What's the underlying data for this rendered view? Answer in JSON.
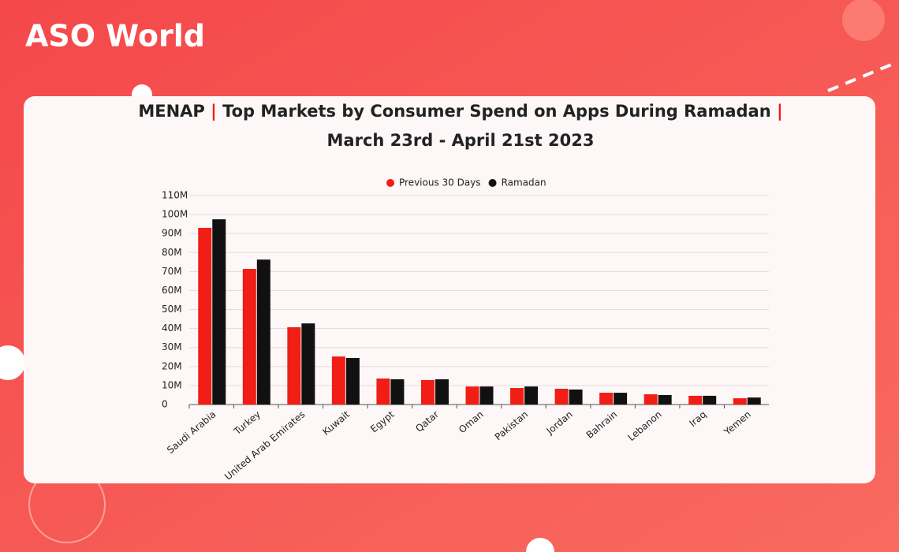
{
  "brand": "ASO World",
  "chart_data": {
    "type": "bar",
    "title": [
      "MENAP | Top Markets by Consumer Spend on Apps During Ramadan |",
      "March 23rd - April 21st 2023"
    ],
    "categories": [
      "Saudi Arabia",
      "Turkey",
      "United Arab Emirates",
      "Kuwait",
      "Egypt",
      "Qatar",
      "Oman",
      "Pakistan",
      "Jordan",
      "Bahrain",
      "Lebanon",
      "Iraq",
      "Yemen"
    ],
    "series": [
      {
        "name": "Previous 30 Days",
        "color": "#f01e14",
        "values": [
          93,
          71.4,
          40.7,
          25.3,
          13.7,
          12.9,
          9.5,
          8.7,
          8.3,
          6.2,
          5.4,
          4.6,
          3.3
        ]
      },
      {
        "name": "Ramadan",
        "color": "#111111",
        "values": [
          97.5,
          76.3,
          42.7,
          24.5,
          13.3,
          13.3,
          9.5,
          9.5,
          7.9,
          6.2,
          5,
          4.6,
          3.7
        ]
      }
    ],
    "ylim": [
      0,
      110
    ],
    "yticks": [
      0,
      {
        "value": 10,
        "label": "10M"
      },
      {
        "value": 20,
        "label": "20M"
      },
      {
        "value": 30,
        "label": "30M"
      },
      {
        "value": 40,
        "label": "40M"
      },
      {
        "value": 50,
        "label": "50M"
      },
      {
        "value": 60,
        "label": "60M"
      },
      {
        "value": 70,
        "label": "70M"
      },
      {
        "value": 80,
        "label": "80M"
      },
      {
        "value": 90,
        "label": "90M"
      },
      {
        "value": 100,
        "label": "100M"
      },
      {
        "value": 110,
        "label": "110M"
      }
    ],
    "grid": true,
    "legend": "top"
  }
}
